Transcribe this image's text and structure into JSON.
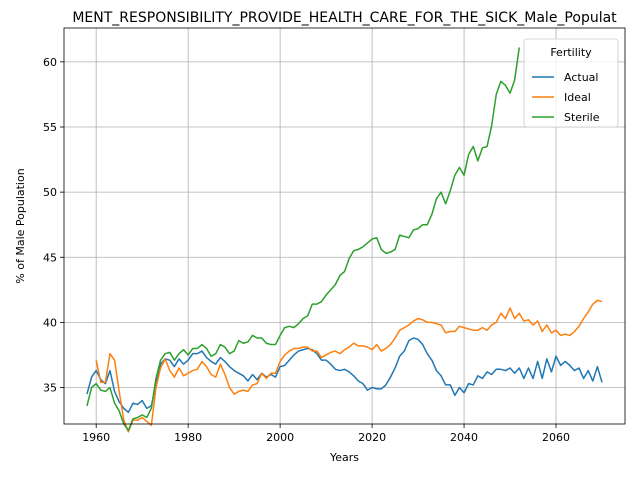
{
  "chart_data": {
    "type": "line",
    "title": "MENT_RESPONSIBILITY_PROVIDE_HEALTH_CARE_FOR_THE_SICK_Male_Populat",
    "xlabel": "Years",
    "ylabel": "% of Male Population",
    "xlim": [
      1953,
      2075
    ],
    "ylim": [
      32.2,
      62.6
    ],
    "xticks": [
      1960,
      1980,
      2000,
      2020,
      2040,
      2060
    ],
    "yticks": [
      35,
      40,
      45,
      50,
      55,
      60
    ],
    "grid": true,
    "legend": {
      "title": "Fertility",
      "placement": "top-right"
    },
    "series": [
      {
        "name": "Actual",
        "color": "#1f77b4",
        "x": [
          1958,
          1959,
          1960,
          1961,
          1962,
          1963,
          1964,
          1965,
          1966,
          1967,
          1968,
          1969,
          1970,
          1971,
          1972,
          1973,
          1974,
          1975,
          1976,
          1977,
          1978,
          1979,
          1980,
          1981,
          1982,
          1983,
          1984,
          1985,
          1986,
          1987,
          1988,
          1989,
          1990,
          1991,
          1992,
          1993,
          1994,
          1995,
          1996,
          1997,
          1998,
          1999,
          2000,
          2001,
          2002,
          2003,
          2004,
          2005,
          2006,
          2007,
          2008,
          2009,
          2010,
          2011,
          2012,
          2013,
          2014,
          2015,
          2016,
          2017,
          2018,
          2019,
          2020,
          2021,
          2022,
          2023,
          2024,
          2025,
          2026,
          2027,
          2028,
          2029,
          2030,
          2031,
          2032,
          2033,
          2034,
          2035,
          2036,
          2037,
          2038,
          2039,
          2040,
          2041,
          2042,
          2043,
          2044,
          2045,
          2046,
          2047,
          2048,
          2049,
          2050,
          2051,
          2052,
          2053,
          2054,
          2055,
          2056,
          2057,
          2058,
          2059,
          2060,
          2061,
          2062,
          2063,
          2064,
          2065,
          2066,
          2067,
          2068,
          2069,
          2070
        ],
        "y": [
          34.5,
          35.8,
          36.3,
          35.6,
          35.3,
          36.3,
          34.7,
          33.9,
          33.4,
          33.1,
          33.8,
          33.7,
          34.0,
          33.4,
          33.6,
          35.3,
          36.8,
          37.2,
          37.1,
          36.6,
          37.2,
          36.8,
          37.1,
          37.6,
          37.6,
          37.8,
          37.3,
          37.0,
          36.8,
          37.3,
          37.0,
          36.6,
          36.3,
          36.1,
          35.9,
          35.5,
          36.0,
          35.6,
          36.1,
          35.8,
          36.0,
          35.8,
          36.6,
          36.7,
          37.1,
          37.5,
          37.8,
          37.9,
          38.0,
          37.9,
          37.6,
          37.1,
          37.1,
          36.8,
          36.4,
          36.3,
          36.4,
          36.2,
          35.9,
          35.5,
          35.3,
          34.8,
          35.0,
          34.9,
          34.9,
          35.2,
          35.8,
          36.5,
          37.4,
          37.8,
          38.6,
          38.8,
          38.7,
          38.3,
          37.6,
          37.1,
          36.3,
          35.9,
          35.2,
          35.2,
          34.4,
          35.0,
          34.6,
          35.3,
          35.2,
          35.9,
          35.7,
          36.2,
          36.0,
          36.4,
          36.4,
          36.3,
          36.5,
          36.1,
          36.5,
          35.7,
          36.5,
          35.7,
          37.0,
          35.7,
          37.2,
          36.2,
          37.4,
          36.7,
          37.0,
          36.7,
          36.3,
          36.5,
          35.7,
          36.3,
          35.5,
          36.6,
          35.4
        ]
      },
      {
        "name": "Ideal",
        "color": "#ff7f0e",
        "x": [
          1958,
          1959,
          1960,
          1961,
          1962,
          1963,
          1964,
          1965,
          1966,
          1967,
          1968,
          1969,
          1970,
          1971,
          1972,
          1973,
          1974,
          1975,
          1976,
          1977,
          1978,
          1979,
          1980,
          1981,
          1982,
          1983,
          1984,
          1985,
          1986,
          1987,
          1988,
          1989,
          1990,
          1991,
          1992,
          1993,
          1994,
          1995,
          1996,
          1997,
          1998,
          1999,
          2000,
          2001,
          2002,
          2003,
          2004,
          2005,
          2006,
          2007,
          2008,
          2009,
          2010,
          2011,
          2012,
          2013,
          2014,
          2015,
          2016,
          2017,
          2018,
          2019,
          2020,
          2021,
          2022,
          2023,
          2024,
          2025,
          2026,
          2027,
          2028,
          2029,
          2030,
          2031,
          2032,
          2033,
          2034,
          2035,
          2036,
          2037,
          2038,
          2039,
          2040,
          2041,
          2042,
          2043,
          2044,
          2045,
          2046,
          2047,
          2048,
          2049,
          2050,
          2051,
          2052,
          2053,
          2054,
          2055,
          2056,
          2057,
          2058,
          2059,
          2060,
          2061,
          2062,
          2063,
          2064,
          2065,
          2066,
          2067,
          2068,
          2069,
          2070
        ],
        "y": [
          null,
          null,
          37.1,
          35.4,
          35.4,
          37.6,
          37.1,
          34.7,
          32.5,
          31.6,
          32.5,
          32.5,
          32.7,
          32.4,
          32.1,
          35.0,
          36.5,
          37.2,
          36.3,
          35.8,
          36.5,
          35.9,
          36.1,
          36.3,
          36.4,
          37.0,
          36.6,
          36.0,
          35.8,
          36.8,
          36.0,
          35.0,
          34.5,
          34.7,
          34.8,
          34.7,
          35.2,
          35.3,
          36.1,
          35.7,
          36.1,
          36.1,
          37.0,
          37.5,
          37.8,
          38.0,
          38.0,
          38.1,
          38.1,
          37.8,
          37.8,
          37.3,
          37.5,
          37.7,
          37.8,
          37.6,
          37.9,
          38.1,
          38.4,
          38.2,
          38.2,
          38.1,
          37.9,
          38.3,
          37.8,
          38.0,
          38.3,
          38.8,
          39.4,
          39.6,
          39.8,
          40.1,
          40.3,
          40.2,
          40.0,
          40.0,
          39.9,
          39.8,
          39.2,
          39.3,
          39.3,
          39.7,
          39.6,
          39.5,
          39.4,
          39.4,
          39.6,
          39.4,
          39.8,
          40.0,
          40.7,
          40.3,
          41.1,
          40.3,
          40.7,
          40.1,
          40.2,
          39.8,
          40.1,
          39.3,
          39.8,
          39.2,
          39.4,
          39.0,
          39.1,
          39.0,
          39.3,
          39.7,
          40.3,
          40.8,
          41.4,
          41.7,
          41.6
        ]
      },
      {
        "name": "Sterile",
        "color": "#2ca02c",
        "x": [
          1958,
          1959,
          1960,
          1961,
          1962,
          1963,
          1964,
          1965,
          1966,
          1967,
          1968,
          1969,
          1970,
          1971,
          1972,
          1973,
          1974,
          1975,
          1976,
          1977,
          1978,
          1979,
          1980,
          1981,
          1982,
          1983,
          1984,
          1985,
          1986,
          1987,
          1988,
          1989,
          1990,
          1991,
          1992,
          1993,
          1994,
          1995,
          1996,
          1997,
          1998,
          1999,
          2000,
          2001,
          2002,
          2003,
          2004,
          2005,
          2006,
          2007,
          2008,
          2009,
          2010,
          2011,
          2012,
          2013,
          2014,
          2015,
          2016,
          2017,
          2018,
          2019,
          2020,
          2021,
          2022,
          2023,
          2024,
          2025,
          2026,
          2027,
          2028,
          2029,
          2030,
          2031,
          2032,
          2033,
          2034,
          2035,
          2036,
          2037,
          2038,
          2039,
          2040,
          2041,
          2042,
          2043,
          2044,
          2045,
          2046,
          2047,
          2048,
          2049,
          2050,
          2051,
          2052
        ],
        "y": [
          33.6,
          35.0,
          35.3,
          34.8,
          34.7,
          35.0,
          33.8,
          33.2,
          32.2,
          31.7,
          32.6,
          32.7,
          32.9,
          32.7,
          33.4,
          35.7,
          37.1,
          37.6,
          37.7,
          37.1,
          37.6,
          37.9,
          37.5,
          38.0,
          38.0,
          38.3,
          38.0,
          37.4,
          37.6,
          38.3,
          38.1,
          37.6,
          37.8,
          38.6,
          38.4,
          38.5,
          39.0,
          38.8,
          38.8,
          38.4,
          38.3,
          38.3,
          39.0,
          39.6,
          39.7,
          39.6,
          39.9,
          40.3,
          40.5,
          41.4,
          41.4,
          41.6,
          42.1,
          42.5,
          42.9,
          43.6,
          43.9,
          44.9,
          45.5,
          45.6,
          45.8,
          46.1,
          46.4,
          46.5,
          45.6,
          45.3,
          45.4,
          45.6,
          46.7,
          46.6,
          46.5,
          47.1,
          47.2,
          47.5,
          47.5,
          48.3,
          49.5,
          50.0,
          49.1,
          50.1,
          51.3,
          51.9,
          51.3,
          52.9,
          53.5,
          52.4,
          53.4,
          53.5,
          55.1,
          57.5,
          58.5,
          58.2,
          57.6,
          58.6,
          61.1
        ]
      }
    ]
  }
}
